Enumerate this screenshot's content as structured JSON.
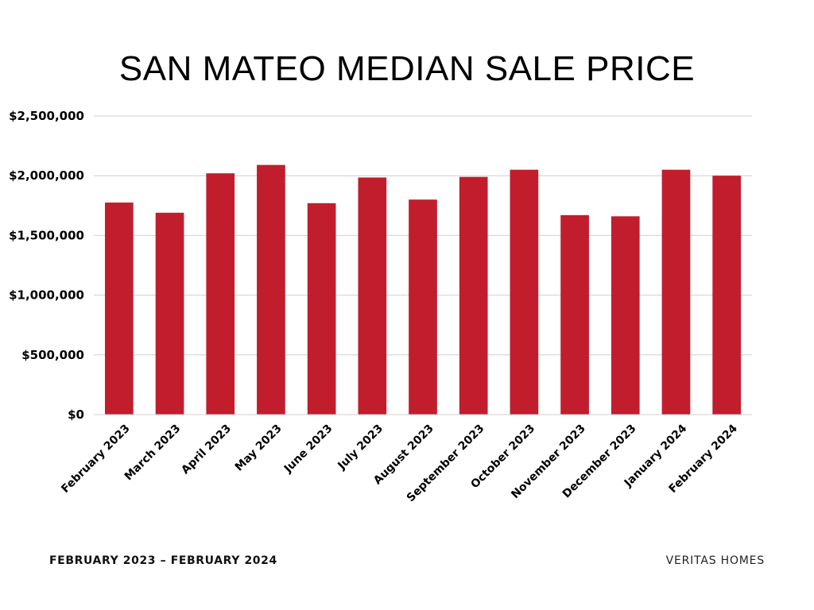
{
  "footer": {
    "date_range": "FEBRUARY 2023 – FEBRUARY 2024",
    "brand": "VERITAS HOMES"
  },
  "colors": {
    "bar": "#c21d2c",
    "grid": "#cfcfcf",
    "text": "#000000"
  },
  "chart_data": {
    "type": "bar",
    "title": "SAN MATEO MEDIAN SALE PRICE",
    "xlabel": "",
    "ylabel": "",
    "categories": [
      "February 2023",
      "March 2023",
      "April 2023",
      "May 2023",
      "June 2023",
      "July 2023",
      "August 2023",
      "September 2023",
      "October 2023",
      "November 2023",
      "December 2023",
      "January 2024",
      "February 2024"
    ],
    "values": [
      1775000,
      1690000,
      2020000,
      2090000,
      1770000,
      1985000,
      1800000,
      1990000,
      2050000,
      1670000,
      1660000,
      2050000,
      2000000
    ],
    "ylim": [
      0,
      2500000
    ],
    "yticks": [
      0,
      500000,
      1000000,
      1500000,
      2000000,
      2500000
    ],
    "ytick_labels": [
      "$0",
      "$500,000",
      "$1,000,000",
      "$1,500,000",
      "$2,000,000",
      "$2,500,000"
    ],
    "grid": true,
    "legend": "none"
  }
}
